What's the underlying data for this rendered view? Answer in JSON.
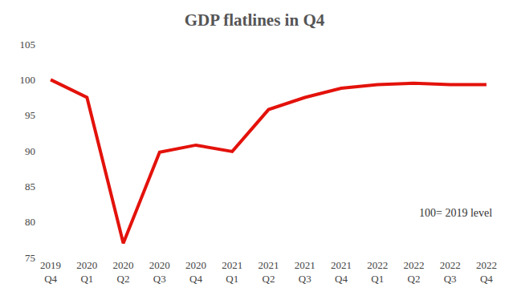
{
  "chart_data": {
    "type": "line",
    "title": "GDP flatlines in Q4",
    "categories": [
      "2019 Q4",
      "2020 Q1",
      "2020 Q2",
      "2020 Q3",
      "2020 Q4",
      "2021 Q1",
      "2021 Q2",
      "2021 Q3",
      "2021 Q4",
      "2022 Q1",
      "2022 Q2",
      "2022 Q3",
      "2022 Q4"
    ],
    "values": [
      100,
      97.5,
      77,
      89.8,
      90.8,
      89.9,
      95.8,
      97.5,
      98.8,
      99.3,
      99.5,
      99.3,
      99.3
    ],
    "color": "#e3120b",
    "ylim": [
      75,
      105
    ],
    "yticks": [
      75,
      80,
      85,
      90,
      95,
      100,
      105
    ],
    "grid": false,
    "annotations": [
      "100= 2019 level"
    ]
  }
}
